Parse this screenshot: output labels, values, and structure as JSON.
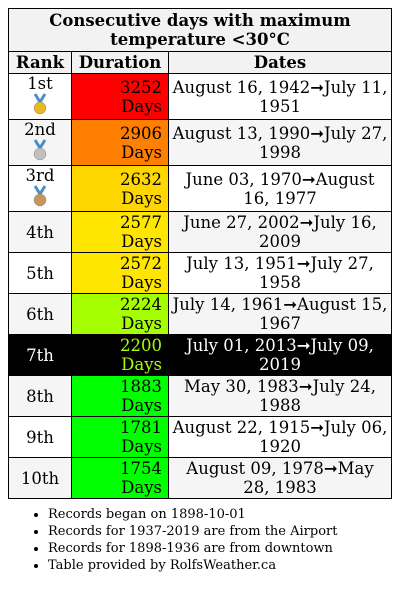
{
  "table": {
    "title": "Consecutive days with maximum temperature <30°C",
    "headers": [
      "Rank",
      "Duration",
      "Dates"
    ],
    "rows": [
      {
        "rank": "1st",
        "duration": 3252,
        "unit": "Days",
        "dates": "August 16, 1942➞July 11, 1951",
        "color": "#ff0000"
      },
      {
        "rank": "2nd",
        "duration": 2906,
        "unit": "Days",
        "dates": "August 13, 1990➞July 27, 1998",
        "color": "#ff7f00"
      },
      {
        "rank": "3rd",
        "duration": 2632,
        "unit": "Days",
        "dates": "June 03, 1970➞August 16, 1977",
        "color": "#ffd700"
      },
      {
        "rank": "4th",
        "duration": 2577,
        "unit": "Days",
        "dates": "June 27, 2002➞July 16, 2009",
        "color": "#ffe600"
      },
      {
        "rank": "5th",
        "duration": 2572,
        "unit": "Days",
        "dates": "July 13, 1951➞July 27, 1958",
        "color": "#ffe600"
      },
      {
        "rank": "6th",
        "duration": 2224,
        "unit": "Days",
        "dates": "July 14, 1961➞August 15, 1967",
        "color": "#a6ff00"
      },
      {
        "rank": "7th",
        "duration": 2200,
        "unit": "Days",
        "dates": "July 01, 2013➞July 09, 2019",
        "color": "#000000"
      },
      {
        "rank": "8th",
        "duration": 1883,
        "unit": "Days",
        "dates": "May 30, 1983➞July 24, 1988",
        "color": "#00ff00"
      },
      {
        "rank": "9th",
        "duration": 1781,
        "unit": "Days",
        "dates": "August 22, 1915➞July 06, 1920",
        "color": "#00ff00"
      },
      {
        "rank": "10th",
        "duration": 1754,
        "unit": "Days",
        "dates": "August 09, 1978➞May 28, 1983",
        "color": "#00ff00"
      }
    ]
  },
  "notes": [
    "Records began on 1898-10-01",
    "Records for 1937-2019 are from the Airport",
    "Records for 1898-1936 are from downtown",
    "Table provided by RolfsWeather.ca"
  ]
}
